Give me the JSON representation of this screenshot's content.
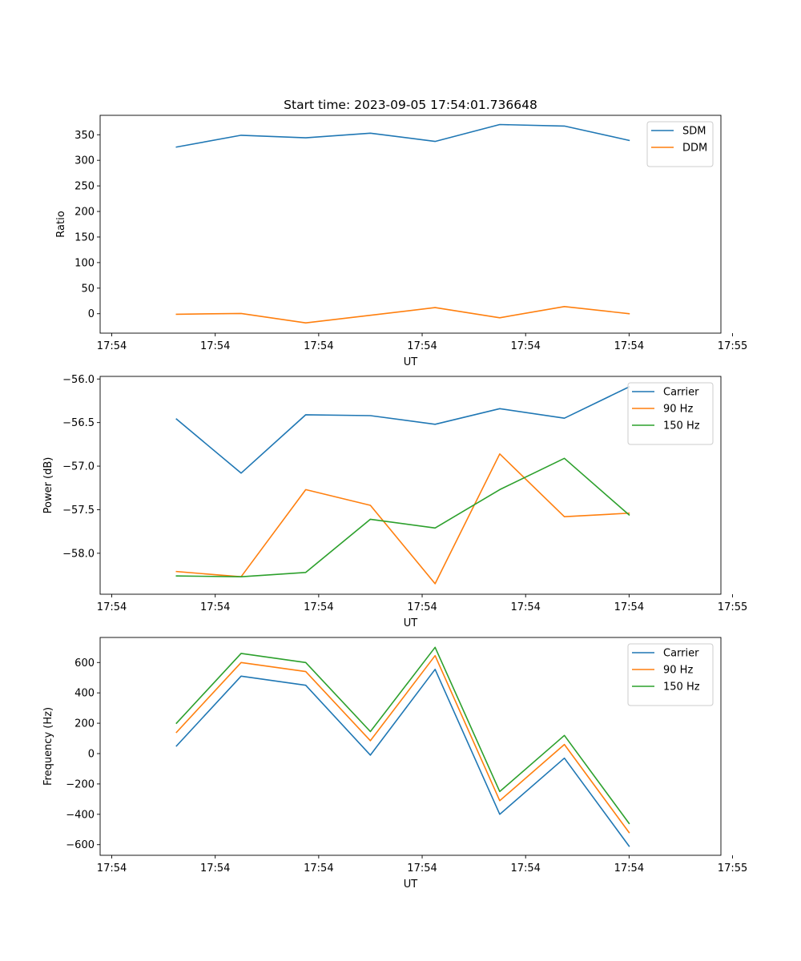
{
  "figure": {
    "title": "Start time: 2023-09-05 17:54:01.736648"
  },
  "colors": {
    "blue": "#1f77b4",
    "orange": "#ff7f0e",
    "green": "#2ca02c"
  },
  "chart_data": [
    {
      "type": "line",
      "title": "Start time: 2023-09-05 17:54:01.736648",
      "xlabel": "UT",
      "ylabel": "Ratio",
      "x": [
        0.5,
        1,
        1.5,
        2,
        2.5,
        3,
        3.5,
        4
      ],
      "xlim": [
        -0.09,
        4.71
      ],
      "xticks": [
        0,
        0.8,
        1.6,
        2.4,
        3.2,
        4.0,
        4.8
      ],
      "xtick_labels": [
        "17:54",
        "17:54",
        "17:54",
        "17:54",
        "17:54",
        "17:54",
        "17:55"
      ],
      "ylim": [
        -38,
        388
      ],
      "yticks": [
        0,
        50,
        100,
        150,
        200,
        250,
        300,
        350
      ],
      "ytick_labels": [
        "0",
        "50",
        "100",
        "150",
        "200",
        "250",
        "300",
        "350"
      ],
      "legend_position": "top-right",
      "series": [
        {
          "name": "SDM",
          "color": "#1f77b4",
          "values": [
            326,
            349,
            344,
            353,
            337,
            370,
            367,
            339
          ]
        },
        {
          "name": "DDM",
          "color": "#ff7f0e",
          "values": [
            -1,
            0.5,
            -18,
            -3,
            12,
            -8,
            14,
            0
          ]
        }
      ]
    },
    {
      "type": "line",
      "xlabel": "UT",
      "ylabel": "Power (dB)",
      "x": [
        0.5,
        1,
        1.5,
        2,
        2.5,
        3,
        3.5,
        4
      ],
      "xlim": [
        -0.09,
        4.71
      ],
      "xticks": [
        0,
        0.8,
        1.6,
        2.4,
        3.2,
        4.0,
        4.8
      ],
      "xtick_labels": [
        "17:54",
        "17:54",
        "17:54",
        "17:54",
        "17:54",
        "17:54",
        "17:55"
      ],
      "ylim": [
        -58.47,
        -55.97
      ],
      "yticks": [
        -58.0,
        -57.5,
        -57.0,
        -56.5,
        -56.0
      ],
      "ytick_labels": [
        "−58.0",
        "−57.5",
        "−57.0",
        "−56.5",
        "−56.0"
      ],
      "legend_position": "top-right",
      "series": [
        {
          "name": "Carrier",
          "color": "#1f77b4",
          "values": [
            -56.46,
            -57.08,
            -56.41,
            -56.42,
            -56.52,
            -56.34,
            -56.45,
            -56.09
          ]
        },
        {
          "name": "90 Hz",
          "color": "#ff7f0e",
          "values": [
            -58.21,
            -58.27,
            -57.27,
            -57.45,
            -58.35,
            -56.86,
            -57.58,
            -57.54
          ]
        },
        {
          "name": "150 Hz",
          "color": "#2ca02c",
          "values": [
            -58.26,
            -58.27,
            -58.22,
            -57.61,
            -57.71,
            -57.27,
            -56.91,
            -57.56
          ]
        }
      ]
    },
    {
      "type": "line",
      "xlabel": "UT",
      "ylabel": "Frequency (Hz)",
      "x": [
        0.5,
        1,
        1.5,
        2,
        2.5,
        3,
        3.5,
        4
      ],
      "xlim": [
        -0.09,
        4.71
      ],
      "xticks": [
        0,
        0.8,
        1.6,
        2.4,
        3.2,
        4.0,
        4.8
      ],
      "xtick_labels": [
        "17:54",
        "17:54",
        "17:54",
        "17:54",
        "17:54",
        "17:54",
        "17:55"
      ],
      "ylim": [
        -670,
        765
      ],
      "yticks": [
        -600,
        -400,
        -200,
        0,
        200,
        400,
        600
      ],
      "ytick_labels": [
        "−600",
        "−400",
        "−200",
        "0",
        "200",
        "400",
        "600"
      ],
      "legend_position": "top-right",
      "series": [
        {
          "name": "Carrier",
          "color": "#1f77b4",
          "values": [
            50,
            510,
            450,
            -10,
            555,
            -400,
            -30,
            -610
          ]
        },
        {
          "name": "90 Hz",
          "color": "#ff7f0e",
          "values": [
            140,
            600,
            540,
            85,
            645,
            -310,
            60,
            -520
          ]
        },
        {
          "name": "150 Hz",
          "color": "#2ca02c",
          "values": [
            200,
            660,
            600,
            145,
            700,
            -250,
            120,
            -460
          ]
        }
      ]
    }
  ]
}
